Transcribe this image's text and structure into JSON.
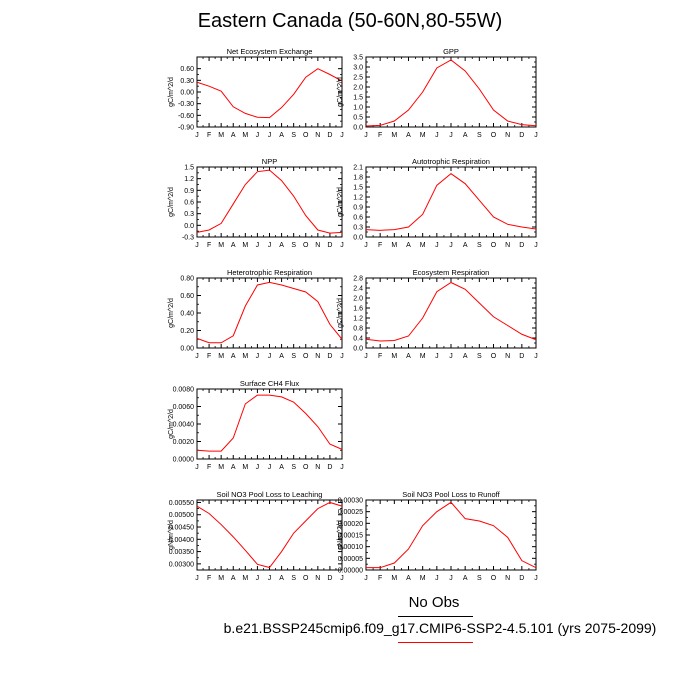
{
  "title": "Eastern Canada (50-60N,80-55W)",
  "months": [
    "J",
    "F",
    "M",
    "A",
    "M",
    "J",
    "J",
    "A",
    "S",
    "O",
    "N",
    "D",
    "J"
  ],
  "legend": {
    "obs_label": "No Obs",
    "case_label": "b.e21.BSSP245cmip6.f09_g17.CMIP6-SSP2-4.5.101 (yrs 2075-2099)",
    "case_color": "#ff0000"
  },
  "line_color": "#ff0000",
  "chart_data": [
    {
      "type": "line",
      "title": "Net Ecosystem Exchange",
      "ylabel": "gC/m^2/d",
      "ylim": [
        -0.9,
        0.9
      ],
      "yticks": [
        "-0.90",
        "-0.60",
        "-0.30",
        "0.00",
        "0.30",
        "0.60"
      ],
      "ytick_values": [
        -0.9,
        -0.6,
        -0.3,
        0.0,
        0.3,
        0.6
      ],
      "values": [
        0.25,
        0.15,
        0.02,
        -0.38,
        -0.55,
        -0.65,
        -0.66,
        -0.4,
        -0.06,
        0.38,
        0.6,
        0.45,
        0.28
      ]
    },
    {
      "type": "line",
      "title": "GPP",
      "ylabel": "gC/m^2/d",
      "ylim": [
        0.0,
        3.5
      ],
      "yticks": [
        "0.0",
        "0.5",
        "1.0",
        "1.5",
        "2.0",
        "2.5",
        "3.0",
        "3.5"
      ],
      "ytick_values": [
        0,
        0.5,
        1.0,
        1.5,
        2.0,
        2.5,
        3.0,
        3.5
      ],
      "values": [
        0.05,
        0.08,
        0.3,
        0.85,
        1.75,
        2.95,
        3.35,
        2.8,
        1.9,
        0.85,
        0.3,
        0.12,
        0.06
      ]
    },
    {
      "type": "line",
      "title": "NPP",
      "ylabel": "gC/m^2/d",
      "ylim": [
        -0.3,
        1.5
      ],
      "yticks": [
        "-0.3",
        "0.0",
        "0.3",
        "0.6",
        "0.9",
        "1.2",
        "1.5"
      ],
      "ytick_values": [
        -0.3,
        0.0,
        0.3,
        0.6,
        0.9,
        1.2,
        1.5
      ],
      "values": [
        -0.18,
        -0.12,
        0.05,
        0.55,
        1.05,
        1.38,
        1.42,
        1.15,
        0.75,
        0.25,
        -0.12,
        -0.2,
        -0.18
      ]
    },
    {
      "type": "line",
      "title": "Autotrophic Respiration",
      "ylabel": "gC/m^2/d",
      "ylim": [
        0.0,
        2.1
      ],
      "yticks": [
        "0.0",
        "0.3",
        "0.6",
        "0.9",
        "1.2",
        "1.5",
        "1.8",
        "2.1"
      ],
      "ytick_values": [
        0,
        0.3,
        0.6,
        0.9,
        1.2,
        1.5,
        1.8,
        2.1
      ],
      "values": [
        0.22,
        0.2,
        0.22,
        0.3,
        0.68,
        1.55,
        1.9,
        1.6,
        1.1,
        0.6,
        0.38,
        0.3,
        0.24
      ]
    },
    {
      "type": "line",
      "title": "Heterotrophic Respiration",
      "ylabel": "gC/m^2/d",
      "ylim": [
        0.0,
        0.8
      ],
      "yticks": [
        "0.00",
        "0.20",
        "0.40",
        "0.60",
        "0.80"
      ],
      "ytick_values": [
        0,
        0.2,
        0.4,
        0.6,
        0.8
      ],
      "values": [
        0.11,
        0.06,
        0.06,
        0.14,
        0.48,
        0.72,
        0.75,
        0.72,
        0.68,
        0.64,
        0.53,
        0.27,
        0.1
      ]
    },
    {
      "type": "line",
      "title": "Ecosystem Respiration",
      "ylabel": "gC/m^2/d",
      "ylim": [
        0.0,
        2.8
      ],
      "yticks": [
        "0.0",
        "0.4",
        "0.8",
        "1.2",
        "1.6",
        "2.0",
        "2.4",
        "2.8"
      ],
      "ytick_values": [
        0,
        0.4,
        0.8,
        1.2,
        1.6,
        2.0,
        2.4,
        2.8
      ],
      "values": [
        0.35,
        0.28,
        0.3,
        0.48,
        1.2,
        2.25,
        2.62,
        2.35,
        1.8,
        1.25,
        0.9,
        0.55,
        0.33
      ]
    },
    {
      "type": "line",
      "title": "Surface CH4 Flux",
      "ylabel": "gC/m^2/d",
      "ylim": [
        0.0,
        0.008
      ],
      "yticks": [
        "0.0000",
        "0.0020",
        "0.0040",
        "0.0060",
        "0.0080"
      ],
      "ytick_values": [
        0,
        0.002,
        0.004,
        0.006,
        0.008
      ],
      "values": [
        0.001,
        0.0009,
        0.0009,
        0.0024,
        0.0063,
        0.0073,
        0.0073,
        0.0071,
        0.0065,
        0.0052,
        0.0037,
        0.0017,
        0.0011
      ]
    },
    {
      "type": "line",
      "title": "Soil NO3 Pool Loss to Leaching",
      "ylabel": "gN/m^2/d",
      "ylim": [
        0.00275,
        0.0056
      ],
      "yticks": [
        "0.00300",
        "0.00350",
        "0.00400",
        "0.00450",
        "0.00500",
        "0.00550"
      ],
      "ytick_values": [
        0.003,
        0.0035,
        0.004,
        0.0045,
        0.005,
        0.0055
      ],
      "values": [
        0.00535,
        0.00505,
        0.0046,
        0.0041,
        0.00355,
        0.00298,
        0.00285,
        0.0035,
        0.00425,
        0.00475,
        0.00525,
        0.0055,
        0.00535
      ]
    },
    {
      "type": "line",
      "title": "Soil NO3 Pool Loss to Runoff",
      "ylabel": "gN/m^2/d",
      "ylim": [
        0.0,
        0.0003
      ],
      "yticks": [
        "0.00000",
        "0.00005",
        "0.00010",
        "0.00015",
        "0.00020",
        "0.00025",
        "0.00030"
      ],
      "ytick_values": [
        0,
        5e-05,
        0.0001,
        0.00015,
        0.0002,
        0.00025,
        0.0003
      ],
      "values": [
        1e-05,
        1e-05,
        3e-05,
        9e-05,
        0.00019,
        0.00025,
        0.00029,
        0.00022,
        0.00021,
        0.00019,
        0.00014,
        4e-05,
        1e-05
      ]
    }
  ]
}
